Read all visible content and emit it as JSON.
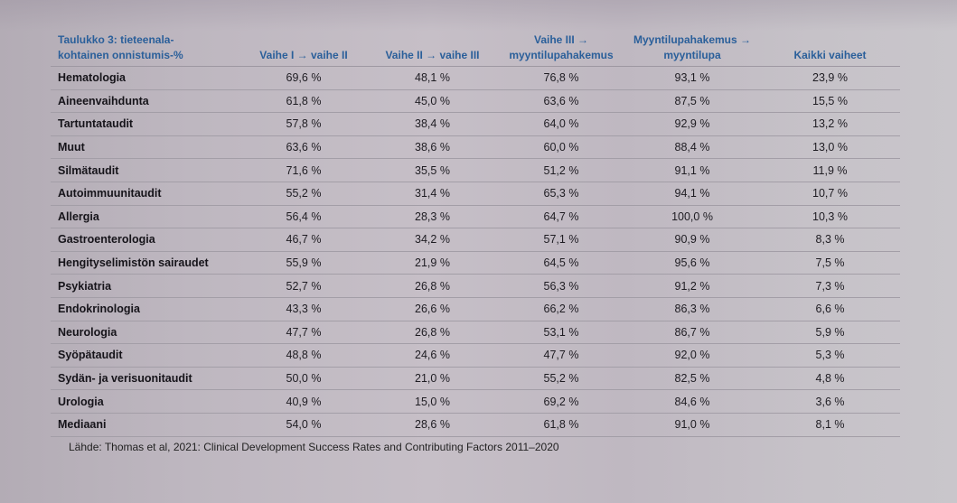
{
  "table": {
    "caption_line1": "Taulukko 3: tieteenala-",
    "caption_line2": "kohtainen onnistumis-%",
    "columns": [
      {
        "line1": "",
        "line2": "Vaihe I → vaihe II"
      },
      {
        "line1": "",
        "line2": "Vaihe II → vaihe III"
      },
      {
        "line1": "Vaihe III →",
        "line2": "myyntilupahakemus"
      },
      {
        "line1": "Myyntilupahakemus →",
        "line2": "myyntilupa"
      },
      {
        "line1": "",
        "line2": "Kaikki vaiheet"
      }
    ],
    "rows": [
      {
        "label": "Hematologia",
        "values": [
          "69,6 %",
          "48,1 %",
          "76,8 %",
          "93,1 %",
          "23,9 %"
        ]
      },
      {
        "label": "Aineenvaihdunta",
        "values": [
          "61,8 %",
          "45,0 %",
          "63,6 %",
          "87,5 %",
          "15,5 %"
        ]
      },
      {
        "label": "Tartuntataudit",
        "values": [
          "57,8 %",
          "38,4 %",
          "64,0 %",
          "92,9 %",
          "13,2 %"
        ]
      },
      {
        "label": "Muut",
        "values": [
          "63,6 %",
          "38,6 %",
          "60,0 %",
          "88,4 %",
          "13,0 %"
        ]
      },
      {
        "label": "Silmätaudit",
        "values": [
          "71,6 %",
          "35,5 %",
          "51,2 %",
          "91,1 %",
          "11,9 %"
        ]
      },
      {
        "label": "Autoimmuunitaudit",
        "values": [
          "55,2 %",
          "31,4 %",
          "65,3 %",
          "94,1 %",
          "10,7 %"
        ]
      },
      {
        "label": "Allergia",
        "values": [
          "56,4 %",
          "28,3 %",
          "64,7 %",
          "100,0 %",
          "10,3 %"
        ]
      },
      {
        "label": "Gastroenterologia",
        "values": [
          "46,7 %",
          "34,2 %",
          "57,1 %",
          "90,9 %",
          "8,3 %"
        ]
      },
      {
        "label": "Hengityselimistön sairaudet",
        "values": [
          "55,9 %",
          "21,9 %",
          "64,5 %",
          "95,6 %",
          "7,5 %"
        ]
      },
      {
        "label": "Psykiatria",
        "values": [
          "52,7 %",
          "26,8 %",
          "56,3 %",
          "91,2 %",
          "7,3 %"
        ]
      },
      {
        "label": "Endokrinologia",
        "values": [
          "43,3 %",
          "26,6 %",
          "66,2 %",
          "86,3 %",
          "6,6 %"
        ]
      },
      {
        "label": "Neurologia",
        "values": [
          "47,7 %",
          "26,8 %",
          "53,1 %",
          "86,7 %",
          "5,9 %"
        ]
      },
      {
        "label": "Syöpätaudit",
        "values": [
          "48,8 %",
          "24,6 %",
          "47,7 %",
          "92,0 %",
          "5,3 %"
        ]
      },
      {
        "label": "Sydän- ja verisuonitaudit",
        "values": [
          "50,0 %",
          "21,0 %",
          "55,2 %",
          "82,5 %",
          "4,8 %"
        ]
      },
      {
        "label": "Urologia",
        "values": [
          "40,9 %",
          "15,0 %",
          "69,2 %",
          "84,6 %",
          "3,6 %"
        ]
      },
      {
        "label": "Mediaani",
        "values": [
          "54,0 %",
          "28,6 %",
          "61,8 %",
          "91,0 %",
          "8,1 %"
        ]
      }
    ],
    "source": "Lähde: Thomas et al, 2021: Clinical Development Success Rates and Contributing Factors 2011–2020"
  },
  "colors": {
    "header_text": "#2a5f9a",
    "body_text": "#1e1c22",
    "rule": "#a39ea7"
  }
}
